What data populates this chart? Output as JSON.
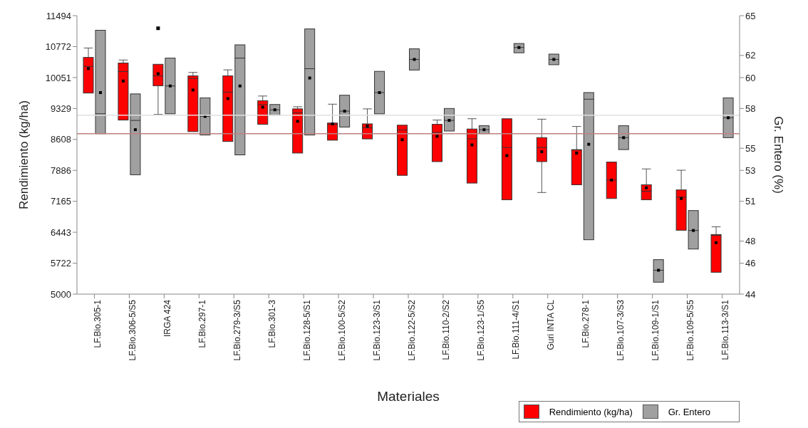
{
  "chart_data": {
    "type": "box",
    "xlabel": "Materiales",
    "ylabel": "Rendimiento (kg/ha)",
    "y2label": "Gr. Entero (%)",
    "categories": [
      "LF.Bio.305-1",
      "LF.Bio.306-5/S5",
      "IRGA 424",
      "LF.Bio.297-1",
      "LF.Bio.279-3/S5",
      "LF.Bio.301-3",
      "LF.Bio.128-5/S1",
      "LF.Bio.100-5/S2",
      "LF.Bio.123-3/S1",
      "LF.Bio.122-5/S2",
      "LF.Bio.110-2/S2",
      "LF.Bio.123-1/S5",
      "LF.Bio.111-4/S1",
      "Guri INTA CL",
      "LF.Bio.278-1",
      "LF.Bio.107-3/S3",
      "LF.Bio.109-1/S1",
      "LF.Bio.109-5/S5",
      "LF.Bio.113-3/S1"
    ],
    "series": [
      {
        "name": "Rendimiento (kg/ha)",
        "color": "#ff0000",
        "boxes": [
          {
            "low": 9690,
            "q1": 9690,
            "median": 10310,
            "q3": 10520,
            "high": 10740,
            "mean": 10260
          },
          {
            "low": 9060,
            "q1": 9060,
            "median": 10190,
            "q3": 10390,
            "high": 10460,
            "mean": 9970
          },
          {
            "low": 9190,
            "q1": 9860,
            "median": 10090,
            "q3": 10360,
            "high": 10360,
            "mean": 10140,
            "outliers": [
              11200
            ]
          },
          {
            "low": 8790,
            "q1": 8790,
            "median": 10030,
            "q3": 10090,
            "high": 10170,
            "mean": 9760
          },
          {
            "low": 8560,
            "q1": 8560,
            "median": 9710,
            "q3": 10090,
            "high": 10230,
            "mean": 9560
          },
          {
            "low": 8960,
            "q1": 8960,
            "median": 9420,
            "q3": 9510,
            "high": 9620,
            "mean": 9360
          },
          {
            "low": 8290,
            "q1": 8290,
            "median": 9230,
            "q3": 9320,
            "high": 9370,
            "mean": 9030
          },
          {
            "low": 8590,
            "q1": 8590,
            "median": 8960,
            "q3": 8990,
            "high": 9430,
            "mean": 8970
          },
          {
            "low": 8620,
            "q1": 8620,
            "median": 8880,
            "q3": 8970,
            "high": 9320,
            "mean": 8920
          },
          {
            "low": 7770,
            "q1": 7770,
            "median": 8830,
            "q3": 8940,
            "high": 8940,
            "mean": 8600
          },
          {
            "low": 8090,
            "q1": 8090,
            "median": 8770,
            "q3": 8960,
            "high": 9060,
            "mean": 8680
          },
          {
            "low": 7590,
            "q1": 7590,
            "median": 8620,
            "q3": 8850,
            "high": 9090,
            "mean": 8480
          },
          {
            "low": 7200,
            "q1": 7200,
            "median": 8420,
            "q3": 9090,
            "high": 9090,
            "mean": 8230
          },
          {
            "low": 7370,
            "q1": 8090,
            "median": 8420,
            "q3": 8650,
            "high": 9080,
            "mean": 8320
          },
          {
            "low": 7550,
            "q1": 7550,
            "median": 8360,
            "q3": 8370,
            "high": 8910,
            "mean": 8290
          },
          {
            "low": 7230,
            "q1": 7230,
            "median": 7660,
            "q3": 8080,
            "high": 8080,
            "mean": 7660
          },
          {
            "low": 7200,
            "q1": 7200,
            "median": 7400,
            "q3": 7550,
            "high": 7920,
            "mean": 7480
          },
          {
            "low": 6490,
            "q1": 6490,
            "median": 7260,
            "q3": 7430,
            "high": 7890,
            "mean": 7230
          },
          {
            "low": 5510,
            "q1": 5510,
            "median": 6370,
            "q3": 6390,
            "high": 6570,
            "mean": 6200
          }
        ]
      },
      {
        "name": "Gr. Entero",
        "color": "#a0a0a0",
        "axis": "y2",
        "boxes": [
          {
            "low": 56.1,
            "q1": 56.1,
            "median": 57.6,
            "q3": 63.9,
            "high": 63.9,
            "mean": 59.2
          },
          {
            "low": 53.0,
            "q1": 53.0,
            "median": 57.1,
            "q3": 59.1,
            "high": 59.1,
            "mean": 56.4
          },
          {
            "low": 57.6,
            "q1": 57.6,
            "median": 59.7,
            "q3": 61.8,
            "high": 61.8,
            "mean": 59.7
          },
          {
            "low": 56.0,
            "q1": 56.0,
            "median": 57.4,
            "q3": 58.8,
            "high": 58.8,
            "mean": 57.4
          },
          {
            "low": 54.5,
            "q1": 54.5,
            "median": 61.8,
            "q3": 62.8,
            "high": 62.8,
            "mean": 59.7
          },
          {
            "low": 57.5,
            "q1": 57.5,
            "median": 57.9,
            "q3": 58.3,
            "high": 58.3,
            "mean": 57.9
          },
          {
            "low": 56.0,
            "q1": 56.0,
            "median": 61.0,
            "q3": 64.0,
            "high": 64.0,
            "mean": 60.3
          },
          {
            "low": 56.6,
            "q1": 56.6,
            "median": 57.8,
            "q3": 59.0,
            "high": 59.0,
            "mean": 57.8
          },
          {
            "low": 57.6,
            "q1": 57.6,
            "median": 59.2,
            "q3": 60.8,
            "high": 60.8,
            "mean": 59.2
          },
          {
            "low": 60.9,
            "q1": 60.9,
            "median": 61.7,
            "q3": 62.5,
            "high": 62.5,
            "mean": 61.7
          },
          {
            "low": 56.3,
            "q1": 56.3,
            "median": 57.1,
            "q3": 58.0,
            "high": 58.0,
            "mean": 57.1
          },
          {
            "low": 56.1,
            "q1": 56.1,
            "median": 56.4,
            "q3": 56.7,
            "high": 56.7,
            "mean": 56.4
          },
          {
            "low": 62.2,
            "q1": 62.2,
            "median": 62.6,
            "q3": 62.9,
            "high": 62.9,
            "mean": 62.6
          },
          {
            "low": 61.3,
            "q1": 61.3,
            "median": 61.7,
            "q3": 62.1,
            "high": 62.1,
            "mean": 61.7
          },
          {
            "low": 48.1,
            "q1": 48.1,
            "median": 58.7,
            "q3": 59.2,
            "high": 59.2,
            "mean": 55.3
          },
          {
            "low": 54.9,
            "q1": 54.9,
            "median": 55.8,
            "q3": 56.7,
            "high": 56.7,
            "mean": 55.8
          },
          {
            "low": 44.9,
            "q1": 44.9,
            "median": 45.8,
            "q3": 46.6,
            "high": 46.6,
            "mean": 45.8
          },
          {
            "low": 47.4,
            "q1": 47.4,
            "median": 48.8,
            "q3": 50.3,
            "high": 50.3,
            "mean": 48.8
          },
          {
            "low": 55.8,
            "q1": 55.8,
            "median": 57.3,
            "q3": 58.8,
            "high": 58.8,
            "mean": 57.3
          }
        ]
      }
    ],
    "ylim": [
      5000,
      11494
    ],
    "yticks": [
      5000,
      {
        "value": 5721.6,
        "label": "5722"
      },
      {
        "value": 6443.1,
        "label": "6443"
      },
      {
        "value": 7164.7,
        "label": "7165"
      },
      {
        "value": 7886.2,
        "label": "7886"
      },
      {
        "value": 8607.8,
        "label": "8608"
      },
      {
        "value": 9329.3,
        "label": "9329"
      },
      {
        "value": 10050.9,
        "label": "10051"
      },
      {
        "value": 10772.4,
        "label": "10772"
      },
      11494
    ],
    "y2lim": [
      44,
      65
    ],
    "y2ticks": [
      44,
      {
        "value": 46.33,
        "label": "46"
      },
      48,
      51,
      {
        "value": 53.33,
        "label": "53"
      },
      55,
      58,
      {
        "value": 60.33,
        "label": "60"
      },
      62,
      65
    ],
    "ref_lines": [
      {
        "axis": "y",
        "value": 8740,
        "color": "#c08080"
      },
      {
        "axis": "y2",
        "value": 57.5,
        "color": "#e0e0e0"
      }
    ],
    "legend": "bottom right"
  }
}
